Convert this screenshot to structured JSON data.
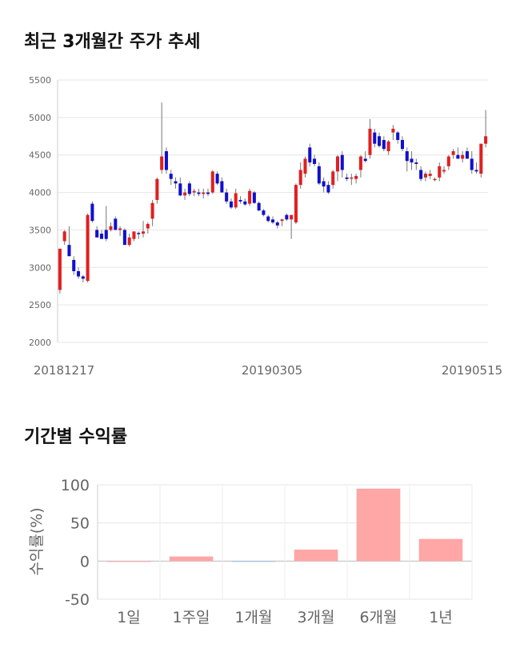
{
  "sections": {
    "price_title": "최근 3개월간 주가 추세",
    "returns_title": "기간별 수익률"
  },
  "chart_data": [
    {
      "type": "candlestick",
      "title": "최근 3개월간 주가 추세",
      "ylim": [
        2000,
        5500
      ],
      "yticks": [
        2000,
        2500,
        3000,
        3500,
        4000,
        4500,
        5000,
        5500
      ],
      "xtick_labels": [
        "20181217",
        "20190305",
        "20190515"
      ],
      "grid": true,
      "up_color": "#e02020",
      "down_color": "#1010cc",
      "candles": [
        {
          "o": 2700,
          "h": 3250,
          "l": 2650,
          "c": 3250
        },
        {
          "o": 3350,
          "h": 3500,
          "l": 3300,
          "c": 3480
        },
        {
          "o": 3300,
          "h": 3550,
          "l": 3150,
          "c": 3150
        },
        {
          "o": 3100,
          "h": 3150,
          "l": 2900,
          "c": 2950
        },
        {
          "o": 2950,
          "h": 3000,
          "l": 2850,
          "c": 2880
        },
        {
          "o": 2880,
          "h": 2900,
          "l": 2800,
          "c": 2850
        },
        {
          "o": 2820,
          "h": 3720,
          "l": 2800,
          "c": 3700
        },
        {
          "o": 3850,
          "h": 3880,
          "l": 3600,
          "c": 3620
        },
        {
          "o": 3500,
          "h": 3550,
          "l": 3400,
          "c": 3400
        },
        {
          "o": 3450,
          "h": 3500,
          "l": 3380,
          "c": 3380
        },
        {
          "o": 3500,
          "h": 3820,
          "l": 3350,
          "c": 3380
        },
        {
          "o": 3500,
          "h": 3600,
          "l": 3480,
          "c": 3550
        },
        {
          "o": 3650,
          "h": 3680,
          "l": 3500,
          "c": 3500
        },
        {
          "o": 3500,
          "h": 3550,
          "l": 3420,
          "c": 3520
        },
        {
          "o": 3500,
          "h": 3520,
          "l": 3300,
          "c": 3300
        },
        {
          "o": 3300,
          "h": 3450,
          "l": 3280,
          "c": 3400
        },
        {
          "o": 3380,
          "h": 3480,
          "l": 3350,
          "c": 3480
        },
        {
          "o": 3460,
          "h": 3480,
          "l": 3380,
          "c": 3450
        },
        {
          "o": 3450,
          "h": 3620,
          "l": 3400,
          "c": 3480
        },
        {
          "o": 3520,
          "h": 3600,
          "l": 3450,
          "c": 3580
        },
        {
          "o": 3650,
          "h": 3900,
          "l": 3550,
          "c": 3860
        },
        {
          "o": 3900,
          "h": 4200,
          "l": 3850,
          "c": 4180
        },
        {
          "o": 4300,
          "h": 5200,
          "l": 4250,
          "c": 4480
        },
        {
          "o": 4550,
          "h": 4600,
          "l": 4250,
          "c": 4300
        },
        {
          "o": 4250,
          "h": 4300,
          "l": 4100,
          "c": 4180
        },
        {
          "o": 4150,
          "h": 4200,
          "l": 4050,
          "c": 4120
        },
        {
          "o": 4120,
          "h": 4200,
          "l": 3950,
          "c": 3960
        },
        {
          "o": 3960,
          "h": 4050,
          "l": 3900,
          "c": 4000
        },
        {
          "o": 4120,
          "h": 4150,
          "l": 3950,
          "c": 3980
        },
        {
          "o": 4000,
          "h": 4050,
          "l": 3950,
          "c": 4020
        },
        {
          "o": 4000,
          "h": 4050,
          "l": 3950,
          "c": 3980
        },
        {
          "o": 3980,
          "h": 4050,
          "l": 3920,
          "c": 4000
        },
        {
          "o": 4000,
          "h": 4050,
          "l": 3950,
          "c": 3980
        },
        {
          "o": 4000,
          "h": 4300,
          "l": 3980,
          "c": 4280
        },
        {
          "o": 4250,
          "h": 4280,
          "l": 4100,
          "c": 4120
        },
        {
          "o": 4150,
          "h": 4200,
          "l": 4000,
          "c": 4000
        },
        {
          "o": 4000,
          "h": 4050,
          "l": 3850,
          "c": 3880
        },
        {
          "o": 3880,
          "h": 3920,
          "l": 3780,
          "c": 3800
        },
        {
          "o": 3800,
          "h": 4050,
          "l": 3780,
          "c": 3990
        },
        {
          "o": 3900,
          "h": 3950,
          "l": 3850,
          "c": 3880
        },
        {
          "o": 3880,
          "h": 3920,
          "l": 3820,
          "c": 3840
        },
        {
          "o": 3850,
          "h": 4050,
          "l": 3820,
          "c": 4020
        },
        {
          "o": 4000,
          "h": 4020,
          "l": 3850,
          "c": 3860
        },
        {
          "o": 3860,
          "h": 3880,
          "l": 3750,
          "c": 3760
        },
        {
          "o": 3760,
          "h": 3780,
          "l": 3680,
          "c": 3700
        },
        {
          "o": 3680,
          "h": 3700,
          "l": 3600,
          "c": 3620
        },
        {
          "o": 3640,
          "h": 3680,
          "l": 3580,
          "c": 3600
        },
        {
          "o": 3600,
          "h": 3620,
          "l": 3520,
          "c": 3560
        },
        {
          "o": 3620,
          "h": 3650,
          "l": 3550,
          "c": 3640
        },
        {
          "o": 3700,
          "h": 3720,
          "l": 3620,
          "c": 3640
        },
        {
          "o": 3640,
          "h": 3700,
          "l": 3380,
          "c": 3700
        },
        {
          "o": 3600,
          "h": 4120,
          "l": 3580,
          "c": 4100
        },
        {
          "o": 4100,
          "h": 4400,
          "l": 4050,
          "c": 4300
        },
        {
          "o": 4250,
          "h": 4480,
          "l": 4200,
          "c": 4450
        },
        {
          "o": 4600,
          "h": 4650,
          "l": 4350,
          "c": 4400
        },
        {
          "o": 4450,
          "h": 4500,
          "l": 4350,
          "c": 4380
        },
        {
          "o": 4350,
          "h": 4400,
          "l": 4100,
          "c": 4120
        },
        {
          "o": 4150,
          "h": 4200,
          "l": 4000,
          "c": 4080
        },
        {
          "o": 4100,
          "h": 4150,
          "l": 3980,
          "c": 4000
        },
        {
          "o": 4100,
          "h": 4300,
          "l": 4050,
          "c": 4280
        },
        {
          "o": 4280,
          "h": 4500,
          "l": 4150,
          "c": 4480
        },
        {
          "o": 4500,
          "h": 4550,
          "l": 4200,
          "c": 4300
        },
        {
          "o": 4200,
          "h": 4250,
          "l": 4150,
          "c": 4180
        },
        {
          "o": 4200,
          "h": 4250,
          "l": 4100,
          "c": 4200
        },
        {
          "o": 4180,
          "h": 4250,
          "l": 4120,
          "c": 4220
        },
        {
          "o": 4300,
          "h": 4500,
          "l": 4200,
          "c": 4480
        },
        {
          "o": 4450,
          "h": 4550,
          "l": 4400,
          "c": 4420
        },
        {
          "o": 4500,
          "h": 4980,
          "l": 4450,
          "c": 4850
        },
        {
          "o": 4800,
          "h": 4850,
          "l": 4600,
          "c": 4650
        },
        {
          "o": 4750,
          "h": 4800,
          "l": 4600,
          "c": 4620
        },
        {
          "o": 4700,
          "h": 4750,
          "l": 4550,
          "c": 4580
        },
        {
          "o": 4550,
          "h": 4700,
          "l": 4500,
          "c": 4680
        },
        {
          "o": 4800,
          "h": 4900,
          "l": 4700,
          "c": 4850
        },
        {
          "o": 4800,
          "h": 4820,
          "l": 4650,
          "c": 4700
        },
        {
          "o": 4700,
          "h": 4750,
          "l": 4550,
          "c": 4580
        },
        {
          "o": 4550,
          "h": 4600,
          "l": 4280,
          "c": 4420
        },
        {
          "o": 4450,
          "h": 4550,
          "l": 4300,
          "c": 4400
        },
        {
          "o": 4400,
          "h": 4450,
          "l": 4300,
          "c": 4380
        },
        {
          "o": 4300,
          "h": 4350,
          "l": 4150,
          "c": 4180
        },
        {
          "o": 4200,
          "h": 4280,
          "l": 4150,
          "c": 4250
        },
        {
          "o": 4220,
          "h": 4300,
          "l": 4180,
          "c": 4250
        },
        {
          "o": 4180,
          "h": 4200,
          "l": 4150,
          "c": 4180
        },
        {
          "o": 4200,
          "h": 4400,
          "l": 4150,
          "c": 4350
        },
        {
          "o": 4280,
          "h": 4350,
          "l": 4250,
          "c": 4300
        },
        {
          "o": 4350,
          "h": 4500,
          "l": 4300,
          "c": 4480
        },
        {
          "o": 4500,
          "h": 4580,
          "l": 4450,
          "c": 4550
        },
        {
          "o": 4500,
          "h": 4600,
          "l": 4450,
          "c": 4450
        },
        {
          "o": 4450,
          "h": 4550,
          "l": 4400,
          "c": 4500
        },
        {
          "o": 4550,
          "h": 4600,
          "l": 4450,
          "c": 4450
        },
        {
          "o": 4450,
          "h": 4550,
          "l": 4250,
          "c": 4300
        },
        {
          "o": 4300,
          "h": 4400,
          "l": 4250,
          "c": 4280
        },
        {
          "o": 4250,
          "h": 4650,
          "l": 4200,
          "c": 4650
        },
        {
          "o": 4650,
          "h": 5100,
          "l": 4600,
          "c": 4750
        }
      ]
    },
    {
      "type": "bar",
      "title": "기간별 수익률",
      "ylabel": "수익률(%)",
      "ylim": [
        -50,
        100
      ],
      "yticks": [
        -50,
        0,
        50,
        100
      ],
      "categories": [
        "1일",
        "1주일",
        "1개월",
        "3개월",
        "6개월",
        "1년"
      ],
      "values": [
        0,
        6,
        -1,
        15,
        95,
        29
      ],
      "grid": true,
      "positive_color": "#ffa6a6",
      "negative_color": "#9ec3e8"
    }
  ]
}
